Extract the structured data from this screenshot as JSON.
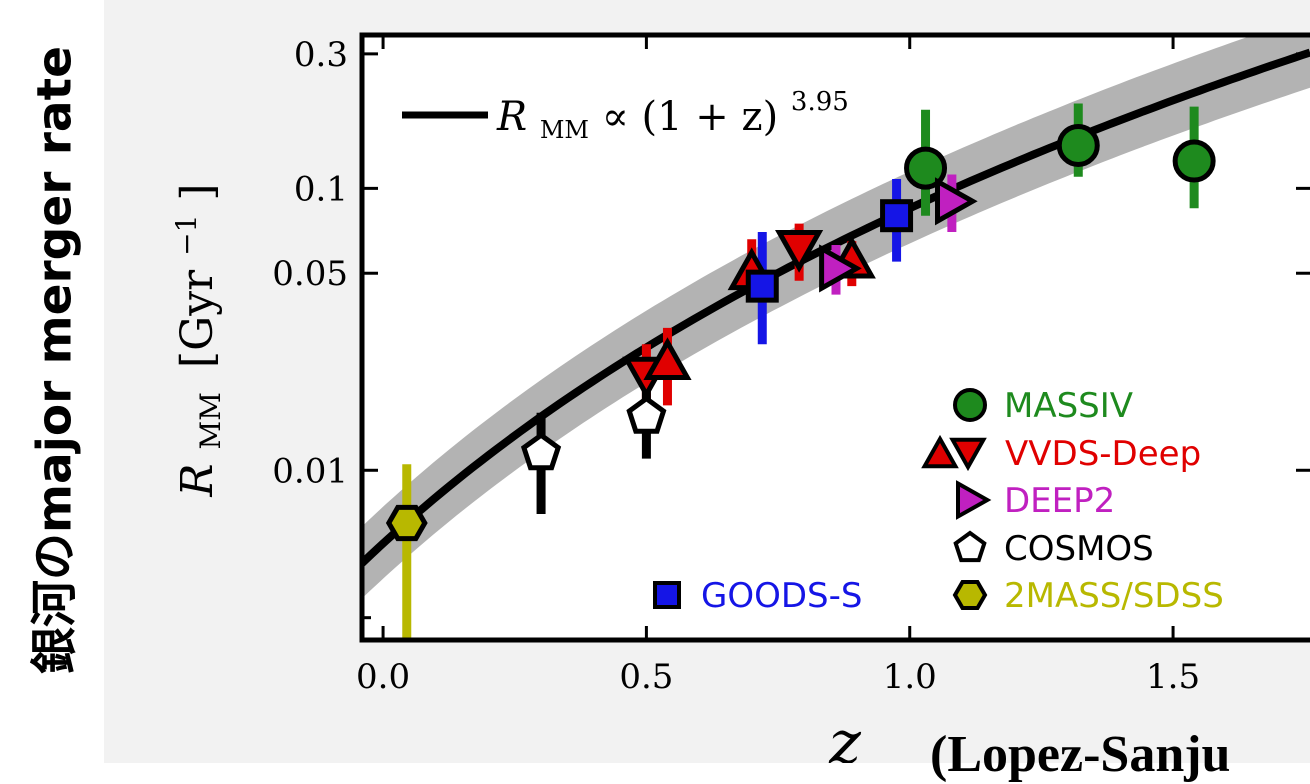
{
  "side_title": "銀河のmajor merger rate",
  "credit": "(Lopez-Sanju",
  "chart_data": {
    "type": "scatter",
    "xlabel": "z",
    "ylabel": "R_MM [Gyr^-1]",
    "ylabel_parts": {
      "main": "R",
      "sub": "MM",
      "units": "[Gyr",
      "exp": "−1",
      "close": "]"
    },
    "xscale": "linear",
    "yscale": "log",
    "xlim": [
      -0.04,
      1.76
    ],
    "ylim": [
      0.0025,
      0.35
    ],
    "x_ticks": [
      0.0,
      0.5,
      1.0,
      1.5
    ],
    "x_tick_labels": [
      "0.0",
      "0.5",
      "1.0",
      "1.5"
    ],
    "y_ticks": [
      0.01,
      0.05,
      0.1,
      0.3
    ],
    "y_tick_labels": [
      "0.01",
      "0.05",
      "0.1",
      "0.3"
    ],
    "y_minor_ticks": [
      0.003
    ],
    "fit": {
      "label_main": "R",
      "label_sub": "MM",
      "label_rest": " ∝ (1 + z)",
      "label_exp": "3.95",
      "normalization": 0.0055,
      "exponent": 3.95,
      "band_low": 0.75,
      "band_high": 1.35
    },
    "series": [
      {
        "name": "MASSIV",
        "color": "#1e8a1e",
        "marker": "circle",
        "points": [
          {
            "x": 1.03,
            "y": 0.118,
            "ylo": 0.08,
            "yhi": 0.19
          },
          {
            "x": 1.32,
            "y": 0.142,
            "ylo": 0.11,
            "yhi": 0.2
          },
          {
            "x": 1.54,
            "y": 0.125,
            "ylo": 0.085,
            "yhi": 0.195
          }
        ]
      },
      {
        "name": "VVDS-Deep",
        "color": "#e00000",
        "marker": "triangle-up-down",
        "points": [
          {
            "x": 0.5,
            "y": 0.022,
            "ylo": 0.017,
            "yhi": 0.028,
            "marker": "triangle-down"
          },
          {
            "x": 0.54,
            "y": 0.024,
            "ylo": 0.017,
            "yhi": 0.032,
            "marker": "triangle-up"
          },
          {
            "x": 0.7,
            "y": 0.05,
            "ylo": 0.04,
            "yhi": 0.066,
            "marker": "triangle-up"
          },
          {
            "x": 0.79,
            "y": 0.062,
            "ylo": 0.047,
            "yhi": 0.075,
            "marker": "triangle-down"
          },
          {
            "x": 0.89,
            "y": 0.055,
            "ylo": 0.045,
            "yhi": 0.065,
            "marker": "triangle-up"
          }
        ]
      },
      {
        "name": "DEEP2",
        "color": "#c020c0",
        "marker": "triangle-right",
        "points": [
          {
            "x": 0.86,
            "y": 0.052,
            "ylo": 0.042,
            "yhi": 0.063
          },
          {
            "x": 1.08,
            "y": 0.09,
            "ylo": 0.07,
            "yhi": 0.112
          }
        ]
      },
      {
        "name": "COSMOS",
        "color": "#ffffff",
        "marker": "pentagon",
        "points": [
          {
            "x": 0.3,
            "y": 0.0115,
            "ylo": 0.007,
            "yhi": 0.016
          },
          {
            "x": 0.5,
            "y": 0.0155,
            "ylo": 0.011,
            "yhi": 0.02
          }
        ]
      },
      {
        "name": "GOODS-S",
        "color": "#1515e6",
        "marker": "square",
        "points": [
          {
            "x": 0.72,
            "y": 0.045,
            "ylo": 0.028,
            "yhi": 0.07
          },
          {
            "x": 0.975,
            "y": 0.08,
            "ylo": 0.055,
            "yhi": 0.108
          }
        ]
      },
      {
        "name": "2MASS/SDSS",
        "color": "#b8b800",
        "marker": "hexagon",
        "points": [
          {
            "x": 0.045,
            "y": 0.0065,
            "ylo": 0.0025,
            "yhi": 0.0105
          }
        ]
      }
    ],
    "legend": [
      {
        "name": "MASSIV",
        "color": "#1e8a1e",
        "marker": "circle",
        "position": "right"
      },
      {
        "name": "VVDS-Deep",
        "color": "#e00000",
        "marker": "triangle-up-down",
        "position": "right"
      },
      {
        "name": "DEEP2",
        "color": "#c020c0",
        "marker": "triangle-right",
        "position": "right"
      },
      {
        "name": "COSMOS",
        "color": "#000000",
        "marker": "pentagon",
        "position": "right"
      },
      {
        "name": "GOODS-S",
        "color": "#1515e6",
        "marker": "square",
        "position": "bottom-middle"
      },
      {
        "name": "2MASS/SDSS",
        "color": "#b8b800",
        "marker": "hexagon",
        "position": "right"
      }
    ]
  }
}
